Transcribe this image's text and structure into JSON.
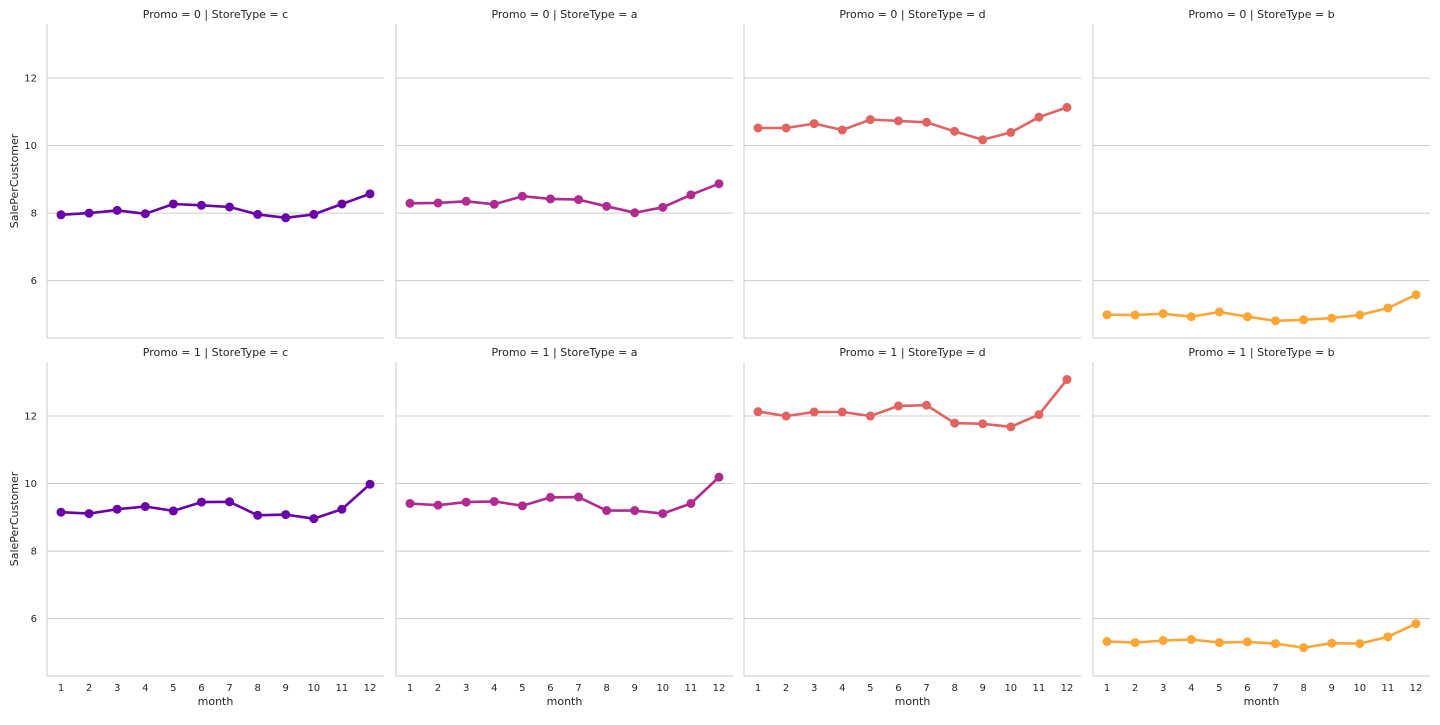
{
  "chart_data": {
    "type": "line",
    "facet_layout": "rows-by-promo, columns-by-storetype",
    "style": "seaborn whitegrid factorplot with point markers",
    "xlabel": "month",
    "ylabel": "SalePerCustomer",
    "x": [
      1,
      2,
      3,
      4,
      5,
      6,
      7,
      8,
      9,
      10,
      11,
      12
    ],
    "x_tick_labels": [
      "1",
      "2",
      "3",
      "4",
      "5",
      "6",
      "7",
      "8",
      "9",
      "10",
      "11",
      "12"
    ],
    "ylim": [
      4.3,
      13.6
    ],
    "y_ticks": [
      6,
      8,
      10,
      12
    ],
    "y_tick_labels": [
      "6",
      "8",
      "10",
      "12"
    ],
    "grid": "horizontal",
    "colors": {
      "c": "#6a00a8",
      "a": "#b12a90",
      "d": "#e16462",
      "b": "#fca636"
    },
    "panels": [
      {
        "title": "Promo = 0 | StoreType = c",
        "promo": 0,
        "store_type": "c",
        "row": 0,
        "col": 0,
        "values": [
          7.95,
          8.0,
          8.08,
          7.98,
          8.27,
          8.23,
          8.18,
          7.96,
          7.86,
          7.96,
          8.27,
          8.57
        ]
      },
      {
        "title": "Promo = 0 | StoreType = a",
        "promo": 0,
        "store_type": "a",
        "row": 0,
        "col": 1,
        "values": [
          8.29,
          8.3,
          8.35,
          8.26,
          8.5,
          8.42,
          8.4,
          8.2,
          8.01,
          8.17,
          8.54,
          8.87
        ]
      },
      {
        "title": "Promo = 0 | StoreType = d",
        "promo": 0,
        "store_type": "d",
        "row": 0,
        "col": 2,
        "values": [
          10.52,
          10.52,
          10.65,
          10.46,
          10.77,
          10.73,
          10.69,
          10.42,
          10.17,
          10.39,
          10.84,
          11.13
        ]
      },
      {
        "title": "Promo = 0 | StoreType = b",
        "promo": 0,
        "store_type": "b",
        "row": 0,
        "col": 3,
        "values": [
          4.99,
          4.98,
          5.02,
          4.93,
          5.07,
          4.93,
          4.81,
          4.84,
          4.89,
          4.98,
          5.19,
          5.58
        ]
      },
      {
        "title": "Promo = 1 | StoreType = c",
        "promo": 1,
        "store_type": "c",
        "row": 1,
        "col": 0,
        "values": [
          9.15,
          9.11,
          9.24,
          9.32,
          9.19,
          9.45,
          9.46,
          9.06,
          9.08,
          8.96,
          9.24,
          9.98
        ]
      },
      {
        "title": "Promo = 1 | StoreType = a",
        "promo": 1,
        "store_type": "a",
        "row": 1,
        "col": 1,
        "values": [
          9.41,
          9.36,
          9.45,
          9.47,
          9.34,
          9.59,
          9.6,
          9.2,
          9.2,
          9.11,
          9.41,
          10.19
        ]
      },
      {
        "title": "Promo = 1 | StoreType = d",
        "promo": 1,
        "store_type": "d",
        "row": 1,
        "col": 2,
        "values": [
          12.13,
          12.0,
          12.12,
          12.12,
          12.0,
          12.3,
          12.32,
          11.79,
          11.77,
          11.68,
          12.04,
          13.08
        ]
      },
      {
        "title": "Promo = 1 | StoreType = b",
        "promo": 1,
        "store_type": "b",
        "row": 1,
        "col": 3,
        "values": [
          5.32,
          5.29,
          5.35,
          5.38,
          5.29,
          5.31,
          5.26,
          5.14,
          5.27,
          5.26,
          5.46,
          5.85
        ]
      }
    ]
  }
}
